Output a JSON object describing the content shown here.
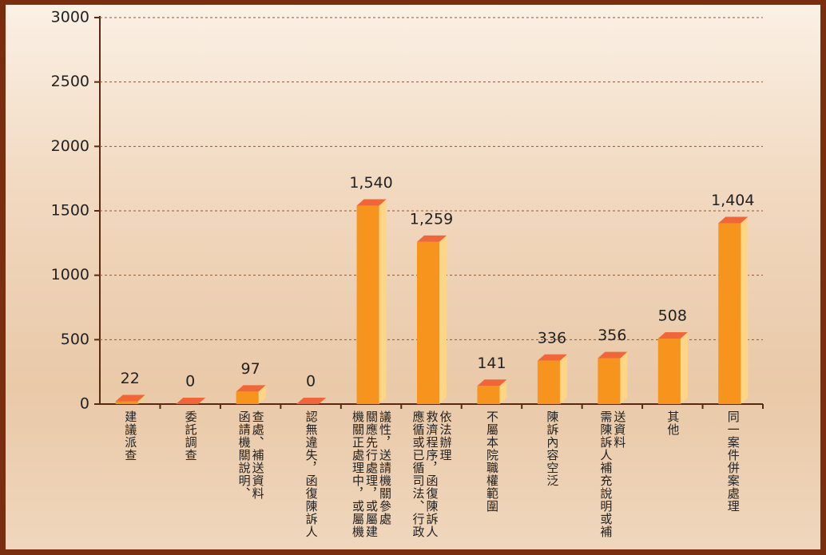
{
  "chart_data": {
    "type": "bar",
    "categories": [
      "建議派查",
      "委託調查",
      "查處、補送資料\n函請機關說明、",
      "認無違失，函復陳訴人",
      "議性，送請機關參處\n關應先行處理，或屬建\n機關正處理中，或屬機",
      "依法辦理\n救濟程序，函復陳訴人\n應循或已循司法、行政",
      "不屬本院職權範圍",
      "陳訴內容空泛",
      "送資料\n需陳訴人補充說明或補",
      "其他",
      "同一案件併案處理"
    ],
    "values": [
      22,
      0,
      97,
      0,
      1540,
      1259,
      141,
      336,
      356,
      508,
      1404
    ],
    "value_labels": [
      "22",
      "0",
      "97",
      "0",
      "1,540",
      "1,259",
      "141",
      "336",
      "356",
      "508",
      "1,404"
    ],
    "color": "#f7941d",
    "ylim": [
      0,
      3000
    ],
    "yticks": [
      0,
      500,
      1000,
      1500,
      2000,
      2500,
      3000
    ],
    "grid": true
  }
}
